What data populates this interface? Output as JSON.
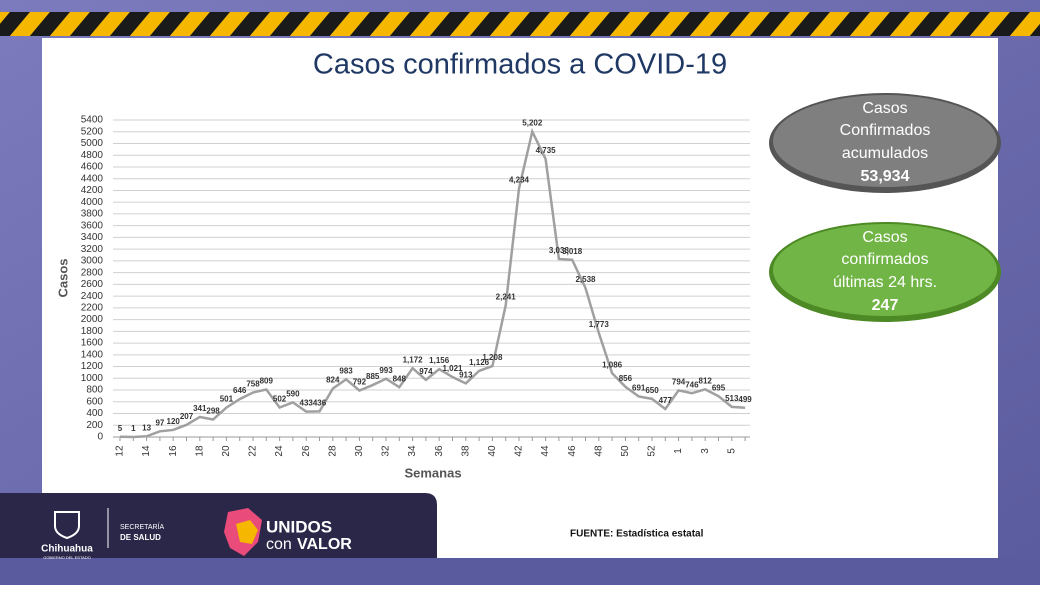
{
  "chart_data": {
    "type": "line",
    "title": "Casos confirmados a COVID-19",
    "y_label": "Casos",
    "x_label": "Semanas",
    "categories": [
      "12",
      null,
      "14",
      null,
      "16",
      null,
      "18",
      null,
      "20",
      null,
      "22",
      null,
      "24",
      null,
      "26",
      null,
      "28",
      null,
      "30",
      null,
      "32",
      null,
      "34",
      null,
      "36",
      null,
      "38",
      null,
      "40",
      null,
      "42",
      null,
      "44",
      null,
      "46",
      null,
      "48",
      null,
      "50",
      null,
      "52",
      null,
      "1",
      null,
      "3",
      null,
      "5",
      null
    ],
    "series": [
      {
        "name": "Casos",
        "color": "#a0a0a0",
        "values": [
          5,
          1,
          13,
          97,
          120,
          207,
          341,
          298,
          501,
          646,
          758,
          809,
          502,
          590,
          433,
          436,
          824,
          983,
          792,
          885,
          993,
          848,
          1172,
          974,
          1156,
          1021,
          913,
          1126,
          1208,
          2241,
          4234,
          5202,
          4735,
          3033,
          3018,
          2538,
          1773,
          1086,
          856,
          691,
          650,
          477,
          794,
          746,
          812,
          695,
          513,
          499
        ],
        "value_labels": [
          "5",
          "1",
          "13",
          "97",
          "120",
          "207",
          "341",
          "298",
          "501",
          "646",
          "758",
          "809",
          "502",
          "590",
          "433",
          "436",
          "824",
          "983",
          "792",
          "885",
          "993",
          "848",
          "1,172",
          "974",
          "1,156",
          "1,021",
          "913",
          "1,126",
          "1,208",
          "2,241",
          "4,234",
          "5,202",
          "4,735",
          "3,033",
          "3,018",
          "2,538",
          "1,773",
          "1,086",
          "856",
          "691",
          "650",
          "477",
          "794",
          "746",
          "812",
          "695",
          "513",
          "499"
        ]
      }
    ],
    "ylim": [
      0,
      5400
    ],
    "yticks": [
      0,
      200,
      400,
      600,
      800,
      1000,
      1200,
      1400,
      1600,
      1800,
      2000,
      2200,
      2400,
      2600,
      2800,
      3000,
      3200,
      3400,
      3600,
      3800,
      4000,
      4200,
      4400,
      4600,
      4800,
      5000,
      5200,
      5400
    ],
    "grid": true
  },
  "summary": {
    "accumulated": {
      "label": [
        "Casos",
        "Confirmados",
        "acumulados"
      ],
      "value": "53,934"
    },
    "last24": {
      "label": [
        "Casos",
        "confirmados",
        "últimas 24 hrs."
      ],
      "value": "247"
    }
  },
  "footer": {
    "state": "Chihuahua",
    "government": "GOBIERNO DEL ESTADO",
    "secretariat": [
      "SECRETARÍA",
      "DE SALUD"
    ],
    "slogan": [
      "UNIDOS",
      "con",
      "VALOR"
    ],
    "source": "FUENTE: Estadística estatal"
  }
}
